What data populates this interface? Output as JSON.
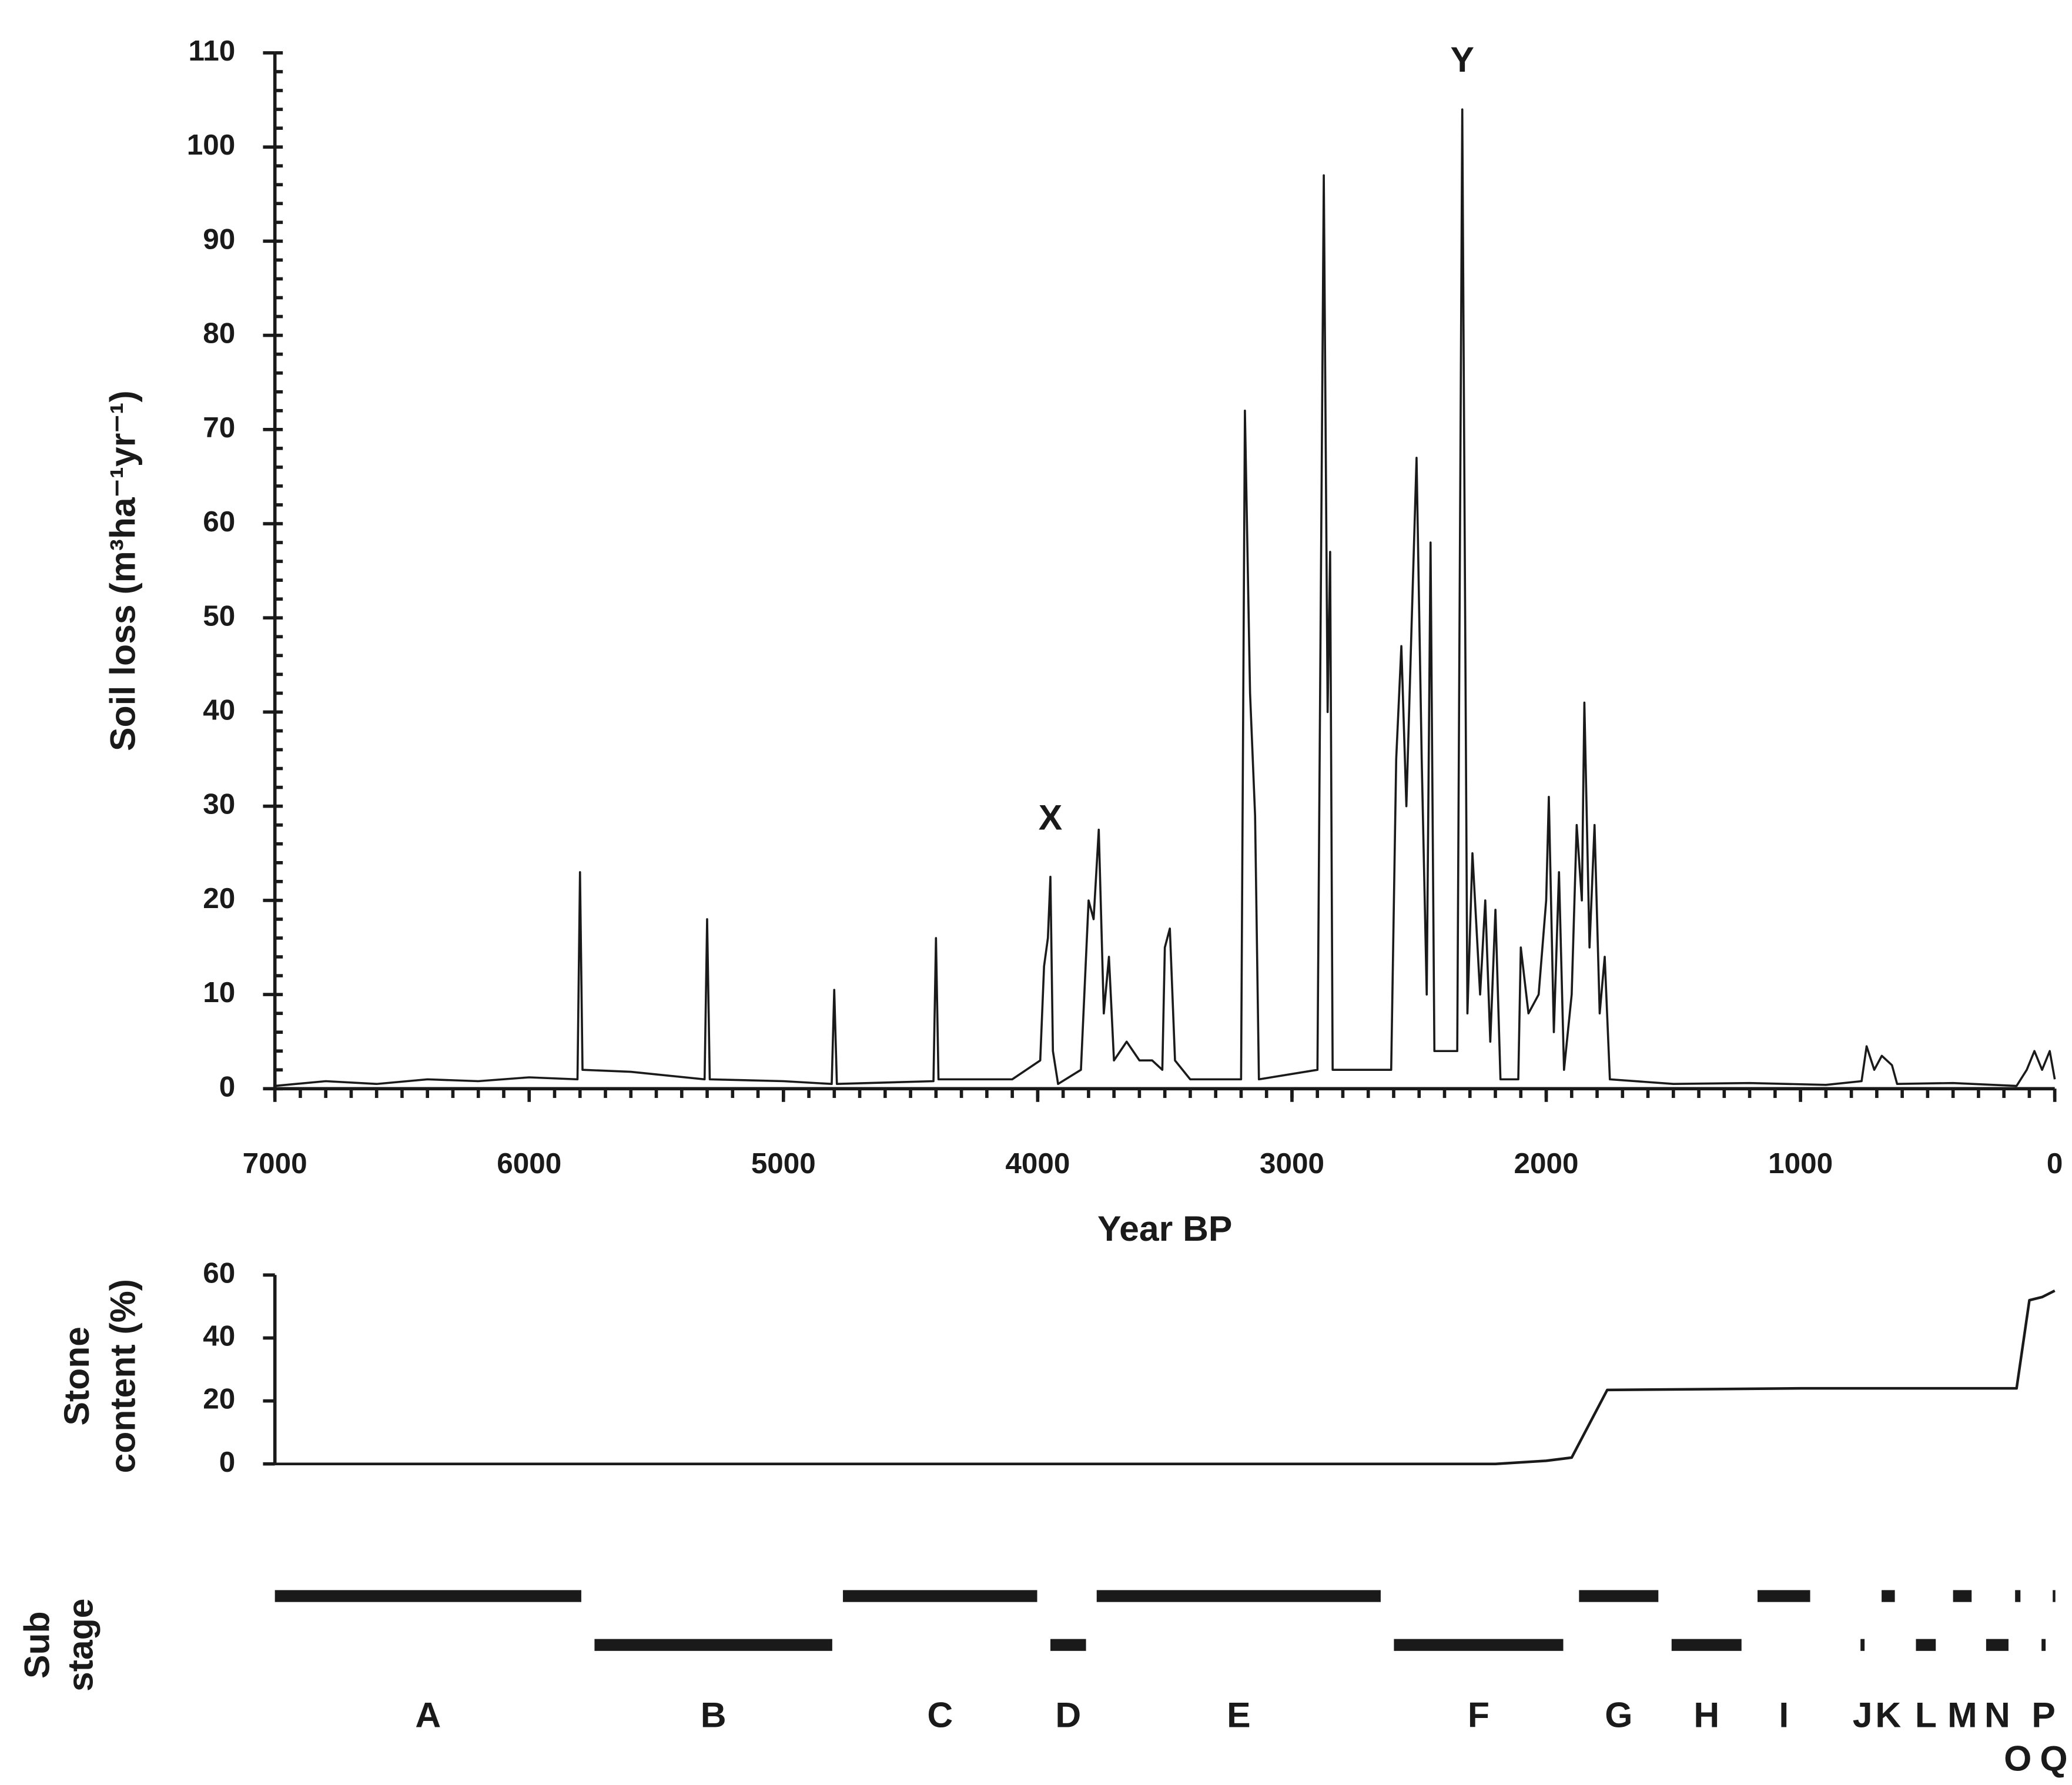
{
  "chart_data": [
    {
      "type": "line",
      "xlabel": "Year BP",
      "ylabel": "Soil loss (m³ha⁻¹yr⁻¹)",
      "color": "#1a1a1a",
      "xlim": [
        7000,
        0
      ],
      "xticks": [
        7000,
        6000,
        5000,
        4000,
        3000,
        2000,
        1000,
        0
      ],
      "ylim": [
        0,
        110
      ],
      "yticks": [
        0,
        10,
        20,
        30,
        40,
        50,
        60,
        70,
        80,
        90,
        100,
        110
      ],
      "x": [
        7000,
        6800,
        6600,
        6400,
        6200,
        6000,
        5810,
        5800,
        5790,
        5600,
        5310,
        5300,
        5290,
        5000,
        4810,
        4800,
        4790,
        4410,
        4400,
        4390,
        4100,
        3990,
        3975,
        3960,
        3950,
        3940,
        3920,
        3830,
        3800,
        3780,
        3760,
        3740,
        3720,
        3700,
        3650,
        3600,
        3550,
        3510,
        3500,
        3480,
        3460,
        3400,
        3200,
        3185,
        3165,
        3145,
        3130,
        2900,
        2875,
        2860,
        2850,
        2840,
        2610,
        2590,
        2570,
        2550,
        2530,
        2510,
        2490,
        2470,
        2455,
        2440,
        2350,
        2330,
        2310,
        2290,
        2260,
        2240,
        2220,
        2200,
        2180,
        2110,
        2100,
        2070,
        2030,
        2000,
        1990,
        1970,
        1950,
        1930,
        1900,
        1880,
        1860,
        1850,
        1830,
        1810,
        1790,
        1770,
        1750,
        1500,
        1200,
        900,
        760,
        740,
        710,
        680,
        640,
        620,
        400,
        150,
        110,
        80,
        50,
        20,
        0
      ],
      "values": [
        0.3,
        0.8,
        0.5,
        1,
        0.8,
        1.2,
        1,
        23,
        2,
        1.8,
        1,
        18,
        1,
        0.8,
        0.5,
        10.5,
        0.5,
        0.8,
        16,
        1,
        1,
        3,
        13,
        16,
        22.5,
        4,
        0.5,
        2,
        20,
        18,
        27.5,
        8,
        14,
        3,
        5,
        3,
        3,
        2,
        15,
        17,
        3,
        1,
        1,
        72,
        42,
        29,
        1,
        2,
        97,
        40,
        57,
        2,
        2,
        35,
        47,
        30,
        49,
        67,
        35,
        10,
        58,
        4,
        4,
        104,
        8,
        25,
        10,
        20,
        5,
        19,
        1,
        1,
        15,
        8,
        10,
        20,
        31,
        6,
        23,
        2,
        10,
        28,
        20,
        41,
        15,
        28,
        8,
        14,
        1,
        0.5,
        0.6,
        0.4,
        0.8,
        4.5,
        2,
        3.5,
        2.5,
        0.5,
        0.6,
        0.3,
        2,
        4,
        2,
        4,
        1
      ],
      "annotations": [
        {
          "text": "X",
          "x": 3950,
          "y": 28.5
        },
        {
          "text": "Y",
          "x": 2330,
          "y": 109
        }
      ]
    },
    {
      "type": "line",
      "ylabel": [
        "Stone",
        "content (%)"
      ],
      "color": "#1a1a1a",
      "xlim": [
        7000,
        0
      ],
      "ylim": [
        0,
        60
      ],
      "yticks": [
        0,
        20,
        40,
        60
      ],
      "x": [
        7000,
        3000,
        2200,
        2000,
        1900,
        1760,
        1000,
        150,
        100,
        50,
        0
      ],
      "values": [
        0,
        0,
        0,
        1,
        2,
        23.5,
        24,
        24,
        52,
        53,
        55
      ]
    },
    {
      "type": "gantt",
      "ylabel": [
        "Sub",
        "stage"
      ],
      "color": "#1a1a1a",
      "xlim": [
        7000,
        0
      ],
      "stages": [
        {
          "label": "A",
          "start": 7000,
          "end": 5795
        },
        {
          "label": "B",
          "start": 5743,
          "end": 4808
        },
        {
          "label": "C",
          "start": 4766,
          "end": 4002
        },
        {
          "label": "D",
          "start": 3950,
          "end": 3810
        },
        {
          "label": "E",
          "start": 3768,
          "end": 2651
        },
        {
          "label": "F",
          "start": 2599,
          "end": 1933
        },
        {
          "label": "G",
          "start": 1871,
          "end": 1559
        },
        {
          "label": "H",
          "start": 1507,
          "end": 1232
        },
        {
          "label": "I",
          "start": 1169,
          "end": 962
        },
        {
          "label": "J",
          "start": 764,
          "end": 748
        },
        {
          "label": "K",
          "start": 681,
          "end": 629
        },
        {
          "label": "L",
          "start": 546,
          "end": 468
        },
        {
          "label": "M",
          "start": 400,
          "end": 327
        },
        {
          "label": "N",
          "start": 270,
          "end": 182
        },
        {
          "label": "O",
          "start": 156,
          "end": 135
        },
        {
          "label": "P",
          "start": 52,
          "end": 36
        },
        {
          "label": "Q",
          "start": 8,
          "end": 0
        }
      ]
    }
  ]
}
